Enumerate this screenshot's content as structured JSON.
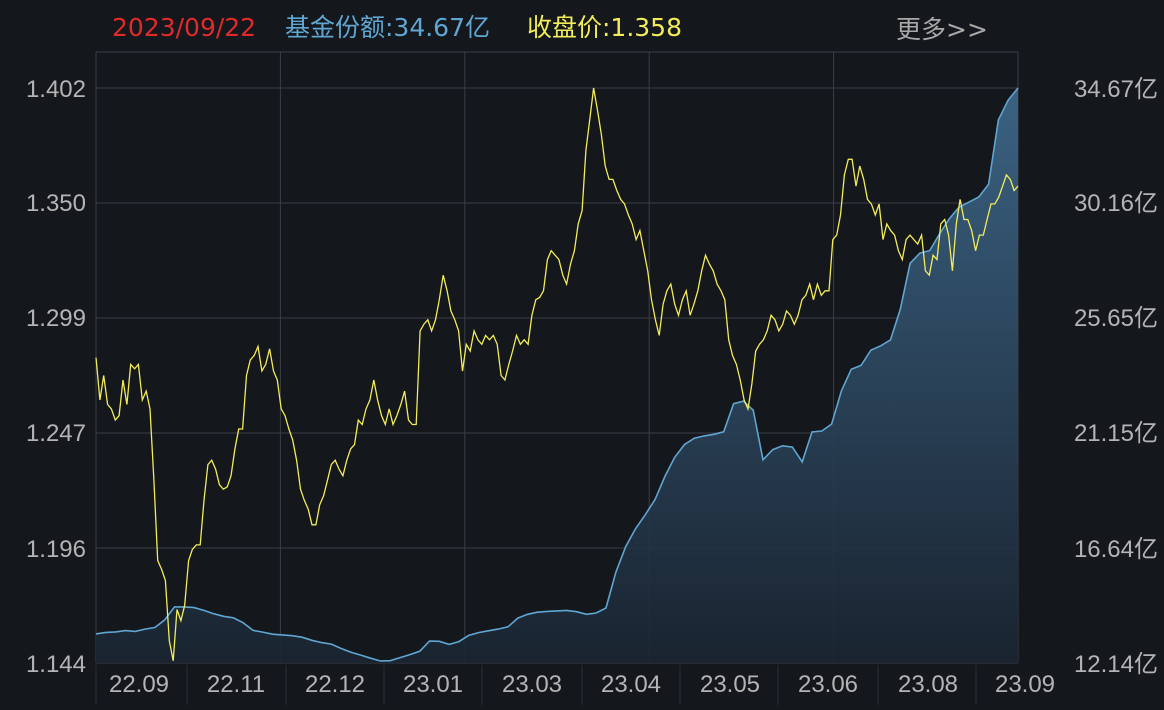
{
  "header": {
    "date": "2023/09/22",
    "shares_label": "基金份额:34.67亿",
    "close_label": "收盘价:1.358",
    "more_link": "更多>>"
  },
  "colors": {
    "background": "#14171c",
    "grid": "#3a3e46",
    "date": "#e02a2a",
    "shares": "#5fa6d2",
    "price": "#f2ec5a",
    "more": "#a8a8a8"
  },
  "chart_data": {
    "type": "line",
    "title": "",
    "x_tick_labels": [
      "22.09",
      "22.11",
      "22.12",
      "23.01",
      "23.03",
      "23.04",
      "23.05",
      "23.06",
      "23.08",
      "23.09"
    ],
    "left_axis": {
      "ticks": [
        "1.402",
        "1.350",
        "1.299",
        "1.247",
        "1.196",
        "1.144"
      ],
      "range": [
        1.144,
        1.402
      ]
    },
    "right_axis": {
      "ticks": [
        "34.67亿",
        "30.16亿",
        "25.65亿",
        "21.15亿",
        "16.64亿",
        "12.14亿"
      ],
      "range": [
        12.14,
        34.67
      ],
      "unit": "亿"
    },
    "grid": true,
    "series": [
      {
        "name": "收盘价",
        "axis": "left",
        "style": "line",
        "values": [
          1.281,
          1.262,
          1.273,
          1.26,
          1.258,
          1.253,
          1.255,
          1.271,
          1.26,
          1.278,
          1.276,
          1.278,
          1.262,
          1.266,
          1.258,
          1.226,
          1.19,
          1.186,
          1.181,
          1.154,
          1.145,
          1.168,
          1.163,
          1.17,
          1.19,
          1.195,
          1.197,
          1.197,
          1.217,
          1.233,
          1.235,
          1.231,
          1.224,
          1.222,
          1.223,
          1.228,
          1.24,
          1.249,
          1.249,
          1.273,
          1.28,
          1.282,
          1.286,
          1.275,
          1.278,
          1.285,
          1.275,
          1.271,
          1.258,
          1.255,
          1.249,
          1.244,
          1.235,
          1.222,
          1.217,
          1.213,
          1.206,
          1.206,
          1.215,
          1.219,
          1.226,
          1.233,
          1.235,
          1.231,
          1.228,
          1.235,
          1.24,
          1.242,
          1.253,
          1.251,
          1.258,
          1.262,
          1.271,
          1.262,
          1.255,
          1.251,
          1.258,
          1.251,
          1.255,
          1.26,
          1.266,
          1.253,
          1.251,
          1.251,
          1.293,
          1.296,
          1.298,
          1.293,
          1.298,
          1.307,
          1.318,
          1.311,
          1.302,
          1.298,
          1.293,
          1.275,
          1.287,
          1.284,
          1.293,
          1.289,
          1.287,
          1.291,
          1.289,
          1.291,
          1.287,
          1.273,
          1.271,
          1.278,
          1.284,
          1.291,
          1.287,
          1.289,
          1.287,
          1.3,
          1.307,
          1.308,
          1.311,
          1.325,
          1.329,
          1.327,
          1.325,
          1.318,
          1.314,
          1.323,
          1.329,
          1.341,
          1.347,
          1.374,
          1.388,
          1.402,
          1.392,
          1.381,
          1.367,
          1.361,
          1.361,
          1.356,
          1.352,
          1.35,
          1.345,
          1.341,
          1.334,
          1.338,
          1.329,
          1.32,
          1.307,
          1.298,
          1.291,
          1.305,
          1.311,
          1.314,
          1.305,
          1.3,
          1.307,
          1.311,
          1.3,
          1.305,
          1.311,
          1.32,
          1.327,
          1.323,
          1.32,
          1.314,
          1.311,
          1.307,
          1.289,
          1.282,
          1.278,
          1.271,
          1.262,
          1.258,
          1.269,
          1.284,
          1.287,
          1.289,
          1.293,
          1.3,
          1.298,
          1.293,
          1.296,
          1.302,
          1.3,
          1.296,
          1.3,
          1.307,
          1.309,
          1.314,
          1.307,
          1.314,
          1.309,
          1.311,
          1.311,
          1.334,
          1.336,
          1.345,
          1.363,
          1.37,
          1.37,
          1.358,
          1.367,
          1.361,
          1.352,
          1.35,
          1.345,
          1.35,
          1.334,
          1.341,
          1.338,
          1.336,
          1.329,
          1.325,
          1.334,
          1.336,
          1.334,
          1.332,
          1.336,
          1.32,
          1.318,
          1.327,
          1.325,
          1.341,
          1.343,
          1.336,
          1.32,
          1.341,
          1.352,
          1.343,
          1.343,
          1.338,
          1.329,
          1.336,
          1.336,
          1.343,
          1.35,
          1.35,
          1.353,
          1.358,
          1.363,
          1.361,
          1.356,
          1.358
        ]
      },
      {
        "name": "基金份额",
        "axis": "right",
        "style": "area",
        "values": [
          13.28,
          13.34,
          13.36,
          13.41,
          13.38,
          13.47,
          13.53,
          13.83,
          14.34,
          14.34,
          14.31,
          14.2,
          14.07,
          13.97,
          13.91,
          13.72,
          13.42,
          13.35,
          13.27,
          13.24,
          13.21,
          13.15,
          13.03,
          12.94,
          12.88,
          12.71,
          12.56,
          12.45,
          12.33,
          12.22,
          12.23,
          12.35,
          12.47,
          12.6,
          13.0,
          12.99,
          12.87,
          12.98,
          13.22,
          13.33,
          13.4,
          13.47,
          13.56,
          13.9,
          14.05,
          14.13,
          14.16,
          14.18,
          14.2,
          14.15,
          14.05,
          14.1,
          14.3,
          15.7,
          16.7,
          17.4,
          17.95,
          18.55,
          19.45,
          20.2,
          20.7,
          20.95,
          21.04,
          21.1,
          21.2,
          22.3,
          22.4,
          22.05,
          20.1,
          20.5,
          20.65,
          20.6,
          20.02,
          21.19,
          21.23,
          21.5,
          22.8,
          23.65,
          23.8,
          24.4,
          24.57,
          24.8,
          26.0,
          27.8,
          28.2,
          28.3,
          28.95,
          29.55,
          30.0,
          30.2,
          30.4,
          30.9,
          33.42,
          34.2,
          34.67
        ]
      }
    ]
  }
}
